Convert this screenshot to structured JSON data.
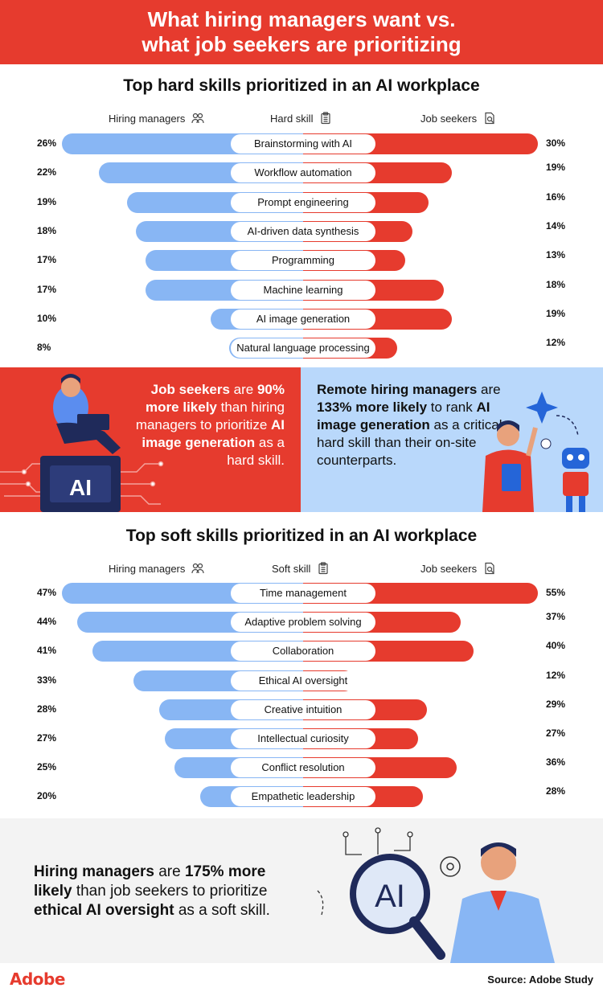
{
  "header": {
    "title_line1": "What hiring managers want vs.",
    "title_line2": "what job seekers are prioritizing"
  },
  "colors": {
    "hiring_managers": "#88b6f4",
    "job_seekers": "#e63b2e",
    "accent": "#e63b2e",
    "panel_blue": "#b9d8fb"
  },
  "columns": {
    "left": "Hiring managers",
    "hard_middle": "Hard skill",
    "soft_middle": "Soft skill",
    "right": "Job seekers"
  },
  "icons": {
    "left": "people-icon",
    "middle": "clipboard-icon",
    "right": "document-search-icon"
  },
  "chart_data": [
    {
      "type": "bar",
      "title": "Top hard skills prioritized in an AI workplace",
      "categories": [
        "Brainstorming with AI",
        "Workflow automation",
        "Prompt engineering",
        "AI-driven data synthesis",
        "Programming",
        "Machine learning",
        "AI image generation",
        "Natural language processing"
      ],
      "series": [
        {
          "name": "Hiring managers",
          "values": [
            26,
            22,
            19,
            18,
            17,
            17,
            10,
            8
          ],
          "labels": [
            "26%",
            "22%",
            "19%",
            "18%",
            "17%",
            "17%",
            "10%",
            "8%"
          ]
        },
        {
          "name": "Job seekers",
          "values": [
            30,
            19,
            16,
            14,
            13,
            18,
            19,
            12
          ],
          "labels": [
            "30%",
            "19%",
            "16%",
            "14%",
            "13%",
            "18%",
            "19%",
            "12%"
          ]
        }
      ]
    },
    {
      "type": "bar",
      "title": "Top soft skills prioritized in an AI workplace",
      "categories": [
        "Time management",
        "Adaptive problem solving",
        "Collaboration",
        "Ethical AI oversight",
        "Creative intuition",
        "Intellectual curiosity",
        "Conflict resolution",
        "Empathetic leadership"
      ],
      "series": [
        {
          "name": "Hiring managers",
          "values": [
            47,
            44,
            41,
            33,
            28,
            27,
            25,
            20
          ],
          "labels": [
            "47%",
            "44%",
            "41%",
            "33%",
            "28%",
            "27%",
            "25%",
            "20%"
          ]
        },
        {
          "name": "Job seekers",
          "values": [
            55,
            37,
            40,
            12,
            29,
            27,
            36,
            28
          ],
          "labels": [
            "55%",
            "37%",
            "40%",
            "12%",
            "29%",
            "27%",
            "36%",
            "28%"
          ]
        }
      ]
    }
  ],
  "callouts": {
    "red": {
      "b1": "Job seekers",
      "t1": " are ",
      "b2": "90% more likely",
      "t2": " than hiring managers to prioritize ",
      "b3": "AI image generation",
      "t3": " as a hard skill.",
      "chip_text": "AI"
    },
    "blue": {
      "b1": "Remote hiring managers",
      "t1": " are ",
      "b2": "133% more likely",
      "t2": " to rank ",
      "b3": "AI image generation",
      "t3": " as a critical hard skill than their on-site counterparts."
    },
    "gray": {
      "b1": "Hiring managers",
      "t1": " are ",
      "b2": "175% more likely",
      "t2": " than job seekers to prioritize ",
      "b3": "ethical AI oversight",
      "t3": " as a soft skill.",
      "lens_text": "AI"
    }
  },
  "footer": {
    "logo": "Adobe",
    "source": "Source: Adobe Study"
  }
}
